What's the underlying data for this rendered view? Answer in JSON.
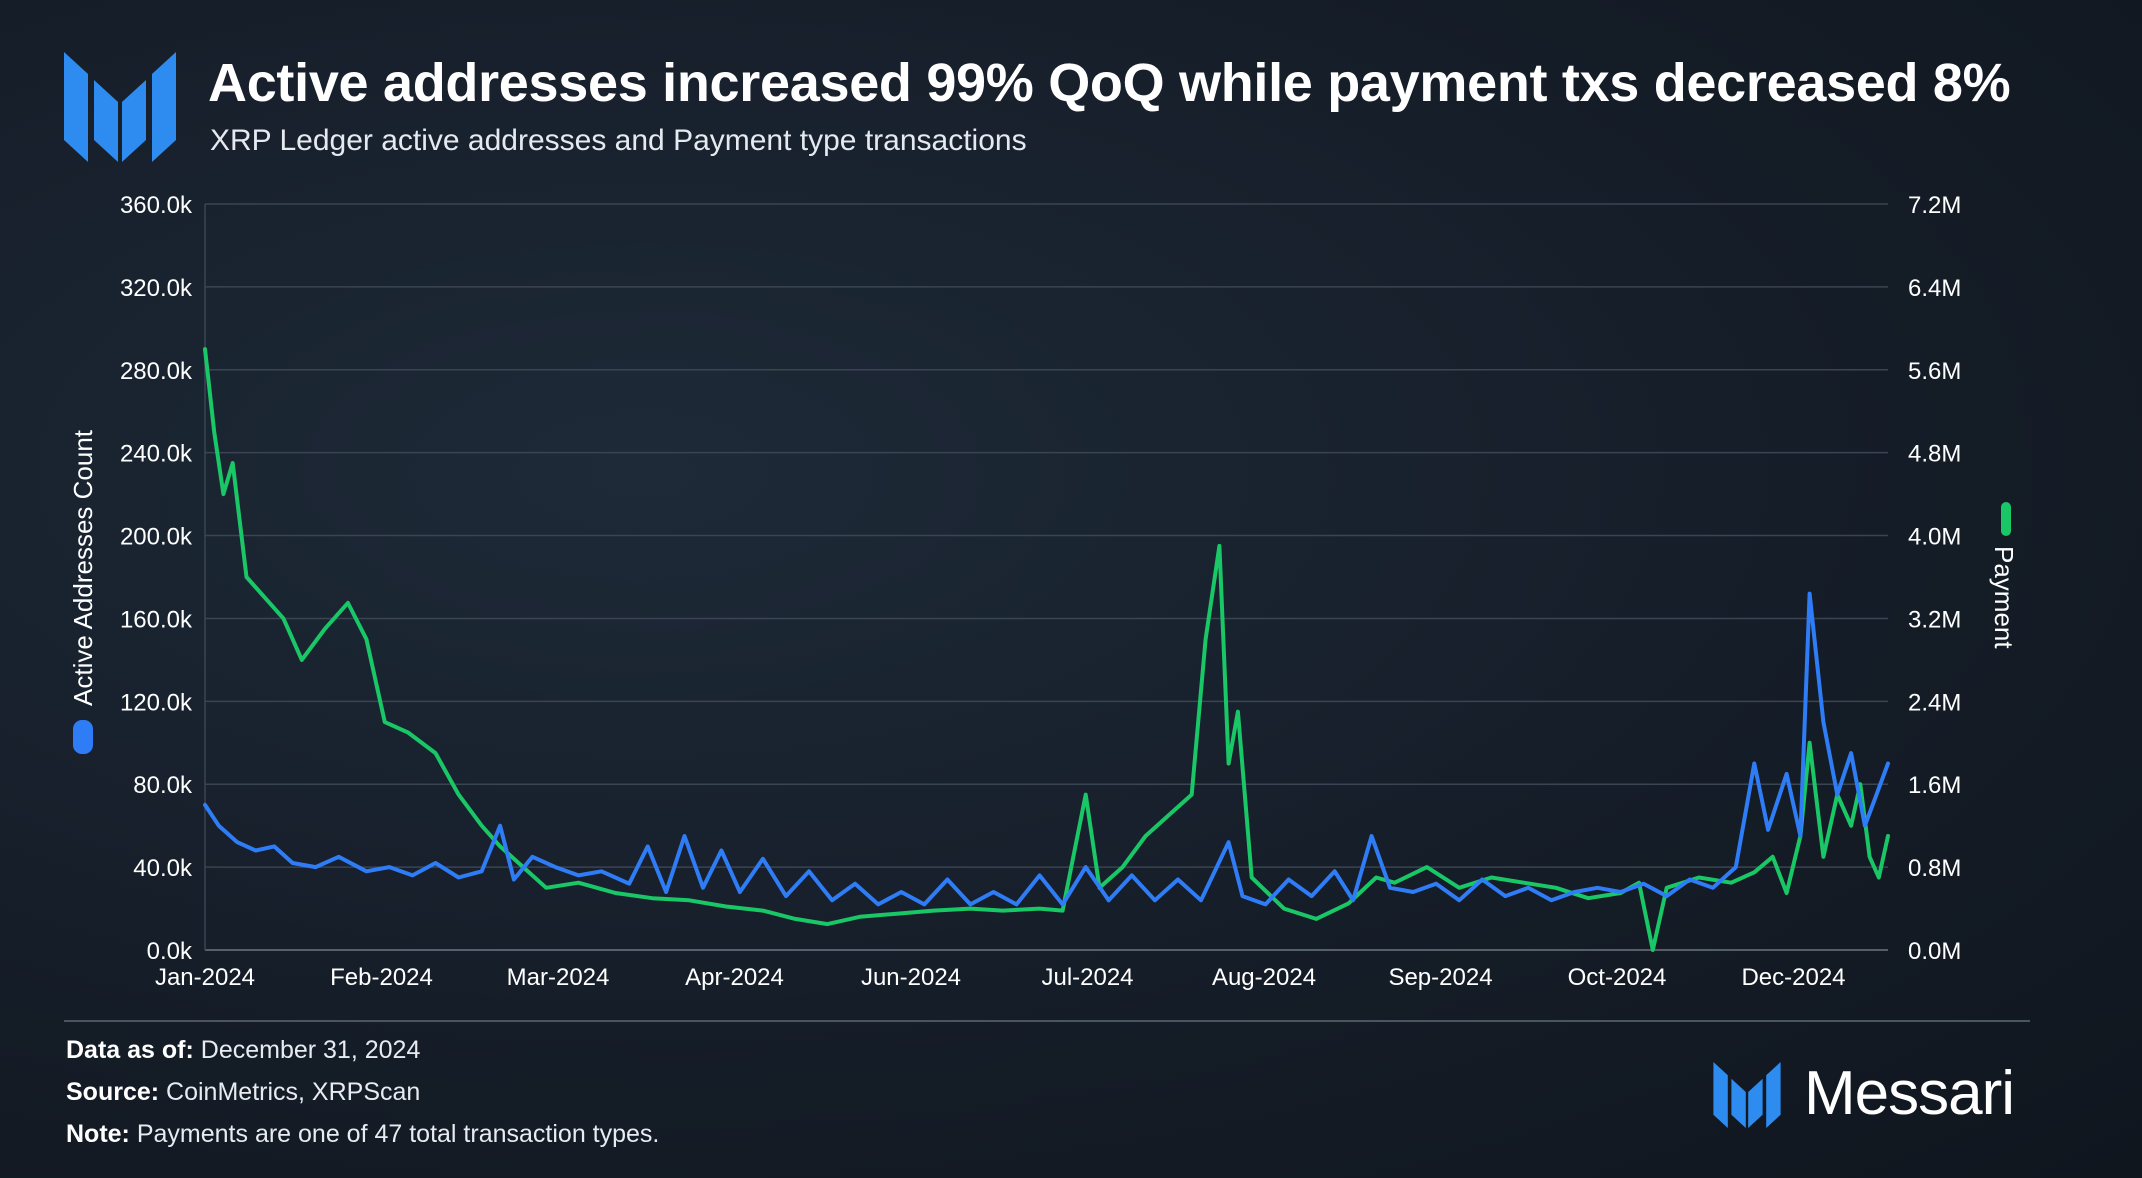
{
  "header": {
    "title": "Active addresses increased 99% QoQ while payment txs decreased 8%",
    "subtitle": "XRP Ledger active addresses and Payment type transactions"
  },
  "colors": {
    "active_addresses": "#2f7df6",
    "payment": "#19c766",
    "brand_blue": "#2e8cf0",
    "grid": "#3a4452"
  },
  "chart_data": {
    "type": "line",
    "x_tick_labels": [
      "Jan-2024",
      "Feb-2024",
      "Mar-2024",
      "Apr-2024",
      "Jun-2024",
      "Jul-2024",
      "Aug-2024",
      "Sep-2024",
      "Oct-2024",
      "Dec-2024"
    ],
    "y_left_label": "Active Addresses Count",
    "y_left_ticks": [
      "0.0k",
      "40.0k",
      "80.0k",
      "120.0k",
      "160.0k",
      "200.0k",
      "240.0k",
      "280.0k",
      "320.0k",
      "360.0k"
    ],
    "y_left_range": [
      0,
      360000
    ],
    "y_right_label": "Payment",
    "y_right_ticks": [
      "0.0M",
      "0.8M",
      "1.6M",
      "2.4M",
      "3.2M",
      "4.0M",
      "4.8M",
      "5.6M",
      "6.4M",
      "7.2M"
    ],
    "y_right_range": [
      0,
      7200000
    ],
    "x_range": [
      "2024-01-01",
      "2024-12-31"
    ],
    "grid": true,
    "series": [
      {
        "name": "Active Addresses Count",
        "axis": "left",
        "color": "#2f7df6",
        "points": [
          [
            "2024-01-01",
            70000
          ],
          [
            "2024-01-04",
            60000
          ],
          [
            "2024-01-08",
            52000
          ],
          [
            "2024-01-12",
            48000
          ],
          [
            "2024-01-16",
            50000
          ],
          [
            "2024-01-20",
            42000
          ],
          [
            "2024-01-25",
            40000
          ],
          [
            "2024-01-30",
            45000
          ],
          [
            "2024-02-05",
            38000
          ],
          [
            "2024-02-10",
            40000
          ],
          [
            "2024-02-15",
            36000
          ],
          [
            "2024-02-20",
            42000
          ],
          [
            "2024-02-25",
            35000
          ],
          [
            "2024-03-01",
            38000
          ],
          [
            "2024-03-05",
            60000
          ],
          [
            "2024-03-08",
            34000
          ],
          [
            "2024-03-12",
            45000
          ],
          [
            "2024-03-17",
            40000
          ],
          [
            "2024-03-22",
            36000
          ],
          [
            "2024-03-27",
            38000
          ],
          [
            "2024-04-02",
            32000
          ],
          [
            "2024-04-06",
            50000
          ],
          [
            "2024-04-10",
            28000
          ],
          [
            "2024-04-14",
            55000
          ],
          [
            "2024-04-18",
            30000
          ],
          [
            "2024-04-22",
            48000
          ],
          [
            "2024-04-26",
            28000
          ],
          [
            "2024-05-01",
            44000
          ],
          [
            "2024-05-06",
            26000
          ],
          [
            "2024-05-11",
            38000
          ],
          [
            "2024-05-16",
            24000
          ],
          [
            "2024-05-21",
            32000
          ],
          [
            "2024-05-26",
            22000
          ],
          [
            "2024-05-31",
            28000
          ],
          [
            "2024-06-05",
            22000
          ],
          [
            "2024-06-10",
            34000
          ],
          [
            "2024-06-15",
            22000
          ],
          [
            "2024-06-20",
            28000
          ],
          [
            "2024-06-25",
            22000
          ],
          [
            "2024-06-30",
            36000
          ],
          [
            "2024-07-05",
            22000
          ],
          [
            "2024-07-10",
            40000
          ],
          [
            "2024-07-15",
            24000
          ],
          [
            "2024-07-20",
            36000
          ],
          [
            "2024-07-25",
            24000
          ],
          [
            "2024-07-30",
            34000
          ],
          [
            "2024-08-04",
            24000
          ],
          [
            "2024-08-10",
            52000
          ],
          [
            "2024-08-13",
            26000
          ],
          [
            "2024-08-18",
            22000
          ],
          [
            "2024-08-23",
            34000
          ],
          [
            "2024-08-28",
            26000
          ],
          [
            "2024-09-02",
            38000
          ],
          [
            "2024-09-06",
            24000
          ],
          [
            "2024-09-10",
            55000
          ],
          [
            "2024-09-14",
            30000
          ],
          [
            "2024-09-19",
            28000
          ],
          [
            "2024-09-24",
            32000
          ],
          [
            "2024-09-29",
            24000
          ],
          [
            "2024-10-04",
            34000
          ],
          [
            "2024-10-09",
            26000
          ],
          [
            "2024-10-14",
            30000
          ],
          [
            "2024-10-19",
            24000
          ],
          [
            "2024-10-24",
            28000
          ],
          [
            "2024-10-29",
            30000
          ],
          [
            "2024-11-03",
            28000
          ],
          [
            "2024-11-08",
            32000
          ],
          [
            "2024-11-13",
            26000
          ],
          [
            "2024-11-18",
            34000
          ],
          [
            "2024-11-23",
            30000
          ],
          [
            "2024-11-28",
            40000
          ],
          [
            "2024-12-02",
            90000
          ],
          [
            "2024-12-05",
            58000
          ],
          [
            "2024-12-09",
            85000
          ],
          [
            "2024-12-12",
            55000
          ],
          [
            "2024-12-14",
            172000
          ],
          [
            "2024-12-17",
            110000
          ],
          [
            "2024-12-20",
            75000
          ],
          [
            "2024-12-23",
            95000
          ],
          [
            "2024-12-26",
            60000
          ],
          [
            "2024-12-28",
            72000
          ],
          [
            "2024-12-31",
            90000
          ]
        ]
      },
      {
        "name": "Payment",
        "axis": "right",
        "color": "#19c766",
        "points": [
          [
            "2024-01-01",
            5800000
          ],
          [
            "2024-01-03",
            5000000
          ],
          [
            "2024-01-05",
            4400000
          ],
          [
            "2024-01-07",
            4700000
          ],
          [
            "2024-01-10",
            3600000
          ],
          [
            "2024-01-14",
            3400000
          ],
          [
            "2024-01-18",
            3200000
          ],
          [
            "2024-01-22",
            2800000
          ],
          [
            "2024-01-27",
            3100000
          ],
          [
            "2024-02-01",
            3350000
          ],
          [
            "2024-02-05",
            3000000
          ],
          [
            "2024-02-09",
            2200000
          ],
          [
            "2024-02-14",
            2100000
          ],
          [
            "2024-02-20",
            1900000
          ],
          [
            "2024-02-25",
            1500000
          ],
          [
            "2024-03-01",
            1200000
          ],
          [
            "2024-03-05",
            1000000
          ],
          [
            "2024-03-10",
            800000
          ],
          [
            "2024-03-15",
            600000
          ],
          [
            "2024-03-22",
            650000
          ],
          [
            "2024-03-30",
            550000
          ],
          [
            "2024-04-07",
            500000
          ],
          [
            "2024-04-15",
            480000
          ],
          [
            "2024-04-23",
            420000
          ],
          [
            "2024-05-01",
            380000
          ],
          [
            "2024-05-08",
            300000
          ],
          [
            "2024-05-15",
            250000
          ],
          [
            "2024-05-22",
            320000
          ],
          [
            "2024-05-30",
            350000
          ],
          [
            "2024-06-07",
            380000
          ],
          [
            "2024-06-15",
            400000
          ],
          [
            "2024-06-22",
            380000
          ],
          [
            "2024-06-30",
            400000
          ],
          [
            "2024-07-05",
            380000
          ],
          [
            "2024-07-10",
            1500000
          ],
          [
            "2024-07-13",
            600000
          ],
          [
            "2024-07-18",
            800000
          ],
          [
            "2024-07-23",
            1100000
          ],
          [
            "2024-07-28",
            1300000
          ],
          [
            "2024-08-02",
            1500000
          ],
          [
            "2024-08-05",
            3000000
          ],
          [
            "2024-08-08",
            3900000
          ],
          [
            "2024-08-10",
            1800000
          ],
          [
            "2024-08-12",
            2300000
          ],
          [
            "2024-08-15",
            700000
          ],
          [
            "2024-08-22",
            400000
          ],
          [
            "2024-08-29",
            300000
          ],
          [
            "2024-09-05",
            450000
          ],
          [
            "2024-09-11",
            700000
          ],
          [
            "2024-09-15",
            650000
          ],
          [
            "2024-09-22",
            800000
          ],
          [
            "2024-09-29",
            600000
          ],
          [
            "2024-10-06",
            700000
          ],
          [
            "2024-10-13",
            650000
          ],
          [
            "2024-10-20",
            600000
          ],
          [
            "2024-10-27",
            500000
          ],
          [
            "2024-11-03",
            550000
          ],
          [
            "2024-11-07",
            650000
          ],
          [
            "2024-11-10",
            0
          ],
          [
            "2024-11-13",
            600000
          ],
          [
            "2024-11-20",
            700000
          ],
          [
            "2024-11-27",
            650000
          ],
          [
            "2024-12-02",
            750000
          ],
          [
            "2024-12-06",
            900000
          ],
          [
            "2024-12-09",
            550000
          ],
          [
            "2024-12-12",
            1100000
          ],
          [
            "2024-12-14",
            2000000
          ],
          [
            "2024-12-17",
            900000
          ],
          [
            "2024-12-20",
            1500000
          ],
          [
            "2024-12-23",
            1200000
          ],
          [
            "2024-12-25",
            1600000
          ],
          [
            "2024-12-27",
            900000
          ],
          [
            "2024-12-29",
            700000
          ],
          [
            "2024-12-31",
            1100000
          ]
        ]
      }
    ]
  },
  "footer": {
    "data_as_of_label": "Data as of:",
    "data_as_of_value": "December 31, 2024",
    "source_label": "Source:",
    "source_value": "CoinMetrics, XRPScan",
    "note_label": "Note:",
    "note_value": "Payments are one of 47 total transaction types."
  },
  "brand": {
    "name": "Messari",
    "logo_icon": "messari-logo-icon"
  }
}
